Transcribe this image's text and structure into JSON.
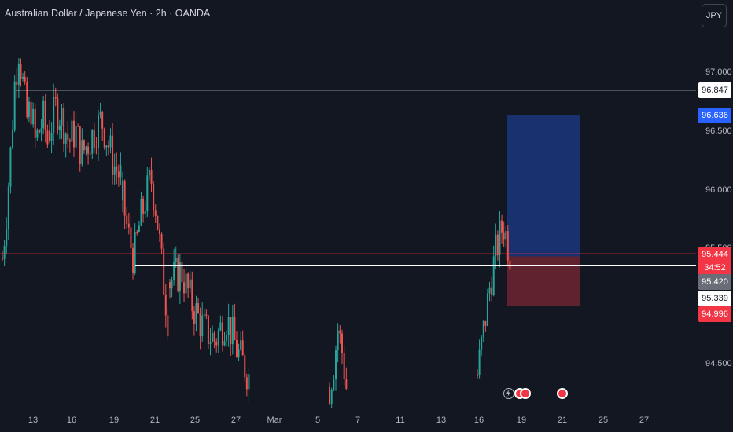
{
  "header": {
    "symbol_title": "Australian Dollar / Japanese Yen · 2h · OANDA",
    "currency_button": "JPY"
  },
  "y_axis": {
    "ticks": [
      "97.000",
      "96.500",
      "96.000",
      "95.500",
      "94.500"
    ]
  },
  "x_axis": {
    "ticks": [
      "13",
      "16",
      "19",
      "21",
      "25",
      "27",
      "Mar",
      "5",
      "7",
      "11",
      "13",
      "16",
      "19",
      "21",
      "25",
      "27"
    ]
  },
  "price_labels": {
    "resistance": "96.847",
    "target": "96.636",
    "last_price": "95.444",
    "countdown": "34:52",
    "entry": "95.420",
    "support": "95.339",
    "stop": "94.996"
  },
  "colors": {
    "background": "#131722",
    "up_candle": "#26a69a",
    "down_candle": "#ef5350",
    "target_zone": "#2962ff",
    "stop_zone": "#f23645",
    "last_price": "#f23645",
    "entry_label": "#6a6d78"
  },
  "events": {
    "icons": [
      "lightning-icon",
      "target-icon",
      "target-icon",
      "target-icon"
    ]
  },
  "chart_data": {
    "type": "candlestick",
    "title": "Australian Dollar / Japanese Yen · 2h · OANDA",
    "ylim": [
      94.3,
      97.4
    ],
    "horizontal_levels": [
      96.847,
      95.339,
      95.444
    ],
    "position": {
      "entry": 95.42,
      "target": 96.636,
      "stop": 94.996
    },
    "series": [
      {
        "segment": "13-early",
        "values": [
          95.4,
          95.8,
          96.3,
          96.9,
          97.2,
          96.9,
          96.6,
          96.7,
          96.4,
          96.5,
          96.6,
          96.4
        ]
      },
      {
        "segment": "16-19",
        "values": [
          96.5,
          96.7,
          96.6,
          96.4,
          96.5,
          96.3,
          96.4,
          96.5,
          96.6,
          96.4,
          96.2,
          96.1
        ]
      },
      {
        "segment": "19-21",
        "values": [
          95.9,
          95.6,
          95.4,
          95.7,
          95.9,
          96.1,
          95.8,
          95.3,
          94.9
        ]
      },
      {
        "segment": "21-25",
        "values": [
          95.2,
          95.3,
          95.0,
          94.8,
          94.7,
          94.9,
          94.6,
          94.4
        ]
      },
      {
        "segment": "5-7",
        "values": [
          94.3,
          94.5,
          94.8,
          94.6,
          94.3
        ]
      },
      {
        "segment": "16-17",
        "values": [
          94.4,
          94.8,
          95.2,
          95.5,
          95.7,
          95.45
        ]
      }
    ]
  }
}
